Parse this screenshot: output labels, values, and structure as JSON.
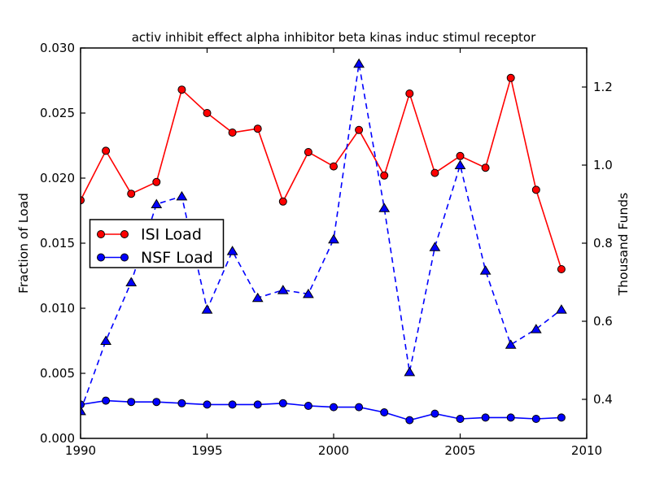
{
  "chart_data": {
    "type": "line",
    "title": "activ inhibit effect alpha inhibitor beta kinas induc stimul receptor",
    "ylabel_left": "Fraction of Load",
    "ylabel_right": "Thousand Funds",
    "grid": false,
    "background": "#ffffff",
    "x": [
      1990,
      1991,
      1992,
      1993,
      1994,
      1995,
      1996,
      1997,
      1998,
      1999,
      2000,
      2001,
      2002,
      2003,
      2004,
      2005,
      2006,
      2007,
      2008,
      2009
    ],
    "xlim": [
      1990,
      2010
    ],
    "xticks": [
      1990,
      1995,
      2000,
      2005,
      2010
    ],
    "xtick_labels": [
      "1990",
      "1995",
      "2000",
      "2005",
      "2010"
    ],
    "ylim_left": [
      0.0,
      0.03
    ],
    "yticks_left": [
      0.0,
      0.005,
      0.01,
      0.015,
      0.02,
      0.025,
      0.03
    ],
    "ytick_labels_left": [
      "0.000",
      "0.005",
      "0.010",
      "0.015",
      "0.020",
      "0.025",
      "0.030"
    ],
    "ylim_right": [
      0.3,
      1.3
    ],
    "yticks_right": [
      0.4,
      0.6,
      0.8,
      1.0,
      1.2
    ],
    "ytick_labels_right": [
      "0.4",
      "0.6",
      "0.8",
      "1.0",
      "1.2"
    ],
    "series": [
      {
        "name": "ISI Load",
        "axis": "left",
        "color": "#ff0000",
        "line": "solid",
        "marker": "circle",
        "in_legend": true,
        "values": [
          0.0183,
          0.0221,
          0.0188,
          0.0197,
          0.0268,
          0.025,
          0.0235,
          0.0238,
          0.0182,
          0.022,
          0.0209,
          0.0237,
          0.0202,
          0.0265,
          0.0204,
          0.0217,
          0.0208,
          0.0277,
          0.0191,
          0.013
        ]
      },
      {
        "name": "NSF Load",
        "axis": "left",
        "color": "#0000ff",
        "line": "solid",
        "marker": "circle",
        "in_legend": true,
        "values": [
          0.0026,
          0.0029,
          0.0028,
          0.0028,
          0.0027,
          0.0026,
          0.0026,
          0.0026,
          0.0027,
          0.0025,
          0.0024,
          0.0024,
          0.002,
          0.0014,
          0.0019,
          0.0015,
          0.0016,
          0.0016,
          0.0015,
          0.0016
        ]
      },
      {
        "name": "Thousand Funds",
        "axis": "right",
        "color": "#0000ff",
        "line": "dashed",
        "marker": "triangle",
        "in_legend": false,
        "values": [
          0.37,
          0.55,
          0.7,
          0.9,
          0.92,
          0.63,
          0.78,
          0.66,
          0.68,
          0.67,
          0.81,
          1.26,
          0.89,
          0.47,
          0.79,
          1.0,
          0.73,
          0.54,
          0.58,
          0.63
        ]
      }
    ],
    "legend": {
      "entries": [
        "ISI Load",
        "NSF Load"
      ],
      "position": "center-left"
    }
  },
  "colors": {
    "red": "#ff0000",
    "blue": "#0000ff",
    "axis": "#000000",
    "background": "#ffffff"
  }
}
